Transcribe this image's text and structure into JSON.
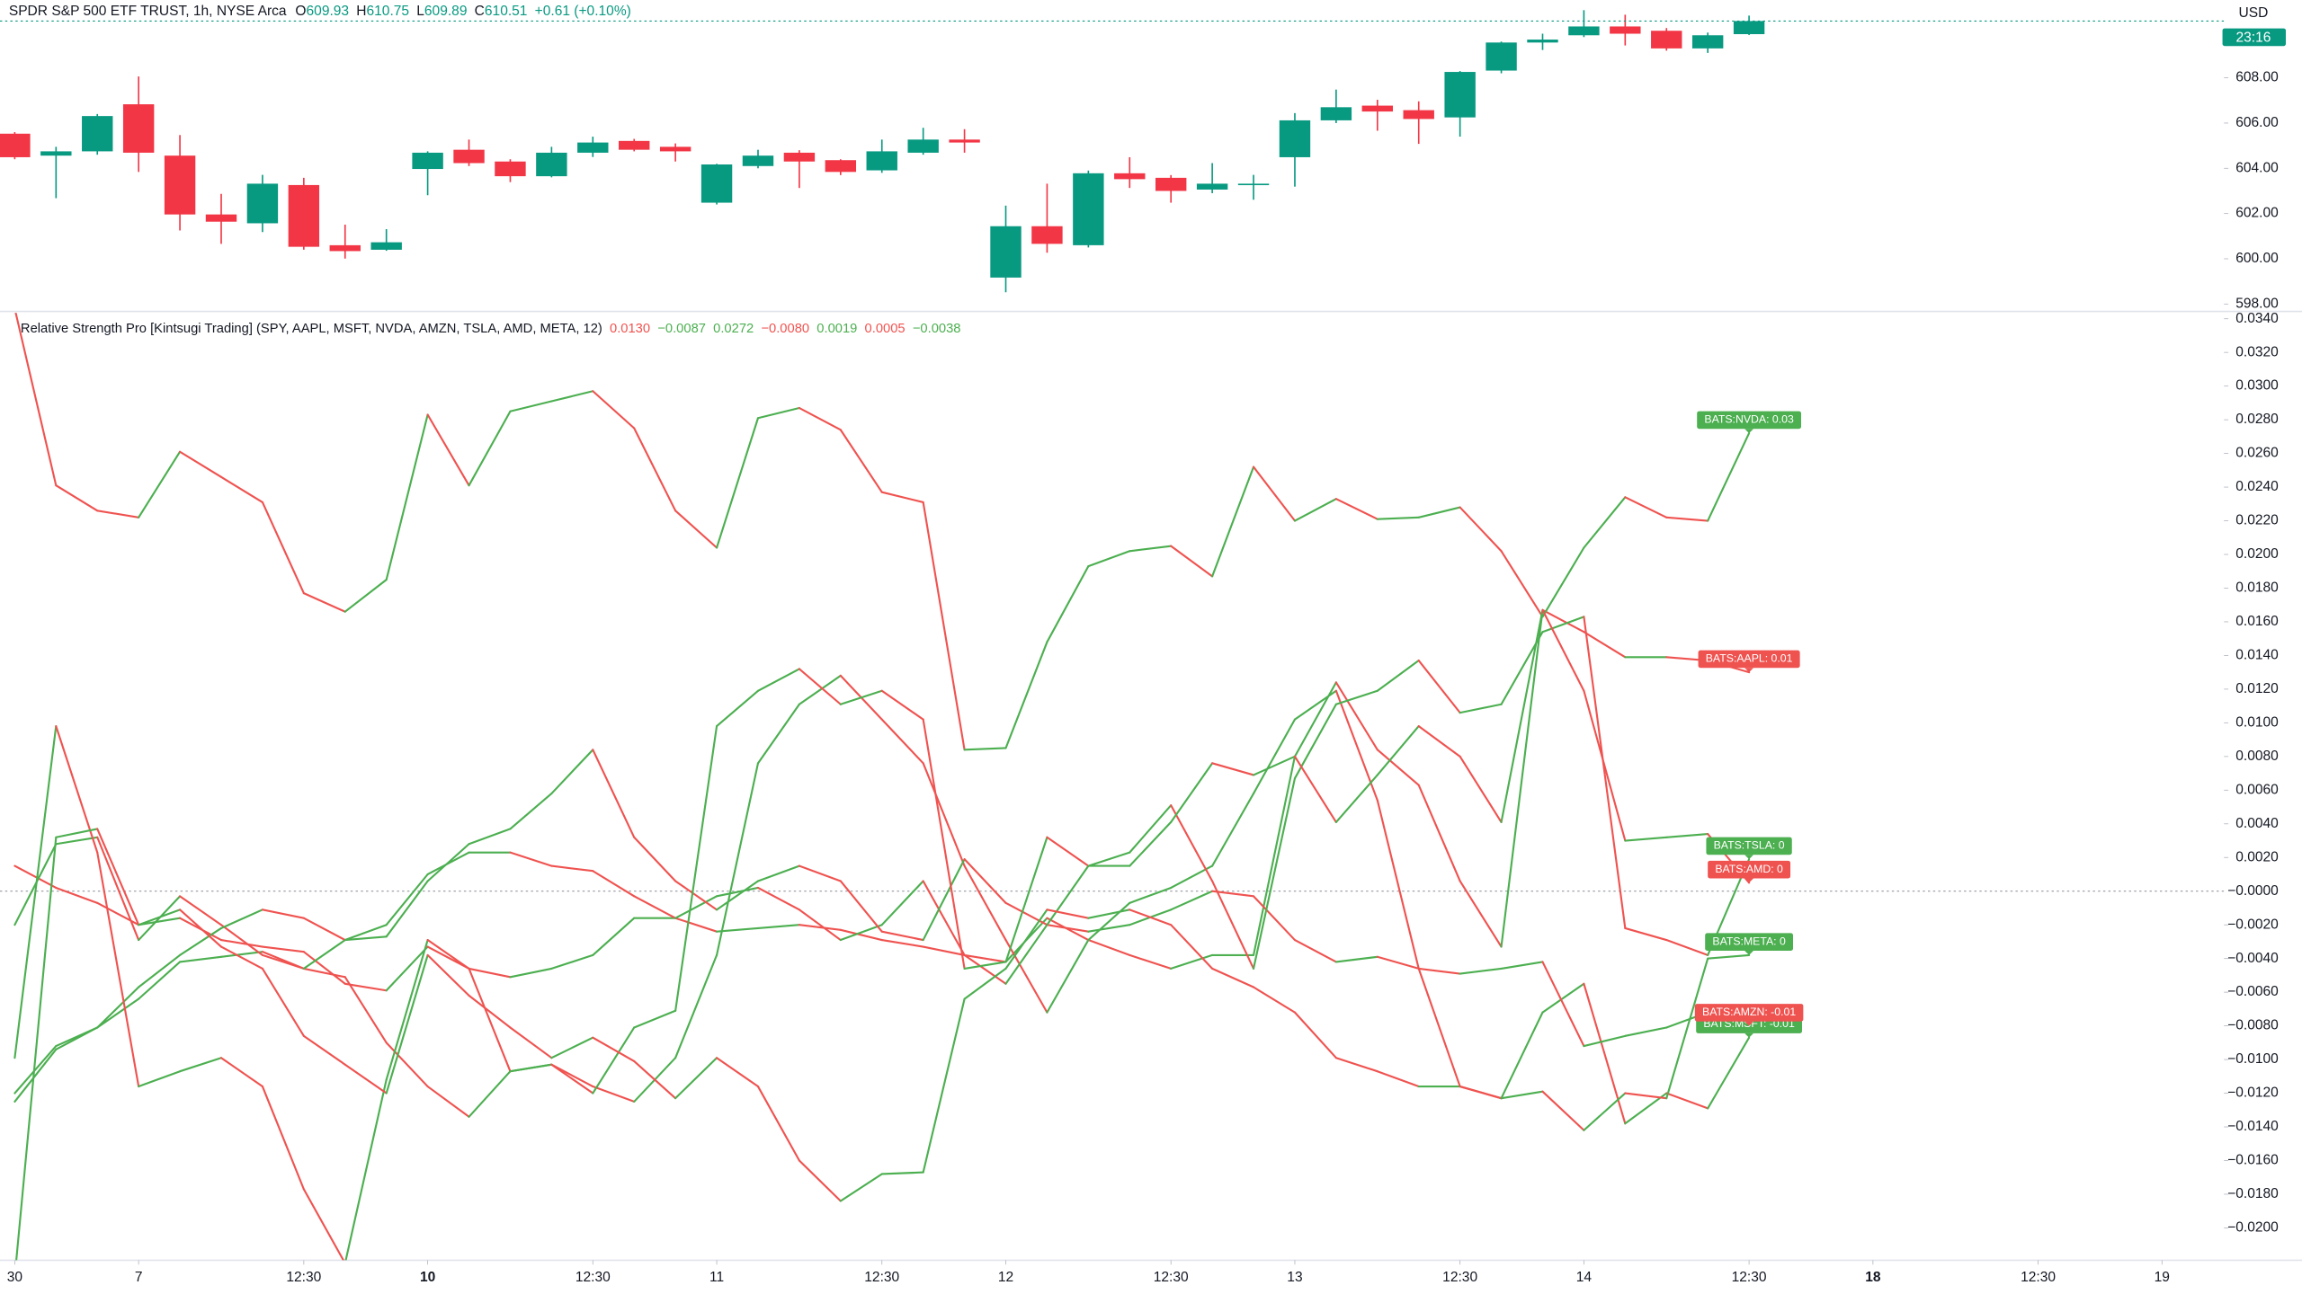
{
  "chart_data": [
    {
      "type": "candlestick",
      "title": "SPDR S&P 500 ETF TRUST, 1h, NYSE Arca",
      "ohlc_labels": [
        {
          "key": "O",
          "text": "609.93"
        },
        {
          "key": "H",
          "text": "610.75"
        },
        {
          "key": "L",
          "text": "609.89"
        },
        {
          "key": "C",
          "text": "610.51"
        }
      ],
      "change": "+0.61 (+0.10%)",
      "currency": "USD",
      "countdown": "23:16",
      "up_color": "#089981",
      "down_color": "#f23645",
      "x": [
        0,
        1,
        2,
        3,
        4,
        5,
        6,
        7,
        8,
        9,
        10,
        11,
        12,
        13,
        14,
        15,
        16,
        17,
        18,
        19,
        20,
        21,
        22,
        23,
        24,
        25,
        26,
        27,
        28,
        29,
        30,
        31,
        32,
        33,
        34,
        35,
        36,
        37,
        38,
        39,
        40,
        41,
        42
      ],
      "open": [
        605.53,
        604.56,
        604.75,
        606.83,
        604.56,
        601.96,
        601.57,
        603.26,
        600.6,
        600.4,
        603.97,
        604.82,
        604.3,
        603.65,
        604.69,
        605.21,
        604.95,
        602.48,
        604.1,
        604.69,
        604.36,
        603.91,
        604.69,
        605.27,
        599.17,
        601.44,
        600.6,
        603.78,
        603.58,
        603.06,
        603.26,
        604.49,
        606.12,
        606.77,
        606.57,
        606.25,
        608.32,
        609.56,
        609.88,
        610.27,
        610.08,
        609.3,
        609.93
      ],
      "high": [
        605.6,
        604.95,
        606.4,
        608.06,
        605.47,
        602.87,
        603.71,
        603.58,
        601.51,
        601.31,
        604.75,
        605.27,
        604.4,
        604.95,
        605.4,
        605.3,
        605.1,
        604.2,
        604.82,
        604.8,
        604.4,
        605.27,
        605.79,
        605.73,
        602.35,
        603.32,
        603.9,
        604.49,
        603.7,
        604.23,
        603.71,
        606.44,
        607.48,
        607.03,
        606.96,
        608.3,
        609.6,
        609.95,
        610.99,
        610.79,
        610.2,
        610.0,
        610.75
      ],
      "low": [
        604.4,
        602.68,
        604.6,
        603.84,
        601.25,
        600.66,
        601.18,
        600.4,
        600.01,
        600.35,
        602.81,
        604.1,
        603.39,
        603.6,
        604.5,
        604.75,
        604.3,
        602.4,
        604.0,
        603.13,
        603.7,
        603.8,
        604.6,
        604.69,
        598.52,
        600.27,
        600.5,
        603.13,
        602.48,
        602.9,
        602.61,
        603.19,
        606.0,
        605.66,
        605.08,
        605.4,
        608.2,
        609.23,
        609.8,
        609.43,
        609.2,
        609.1,
        609.89
      ],
      "close": [
        604.49,
        604.75,
        606.31,
        604.69,
        601.96,
        601.64,
        603.32,
        600.53,
        600.34,
        600.73,
        604.69,
        604.23,
        603.65,
        604.69,
        605.14,
        604.82,
        604.75,
        604.17,
        604.56,
        604.3,
        603.84,
        604.75,
        605.27,
        605.14,
        601.44,
        600.66,
        603.78,
        603.52,
        603.0,
        603.32,
        603.32,
        606.12,
        606.7,
        606.51,
        606.18,
        608.26,
        609.56,
        609.69,
        610.27,
        609.95,
        609.3,
        609.88,
        610.51
      ],
      "xlim": [
        -0.357,
        53.5
      ],
      "ylim": [
        597.74,
        611.44
      ],
      "yticks": [
        {
          "value": 598,
          "label": "598.00"
        },
        {
          "value": 600,
          "label": "600.00"
        },
        {
          "value": 602,
          "label": "602.00"
        },
        {
          "value": 604,
          "label": "604.00"
        },
        {
          "value": 606,
          "label": "606.00"
        },
        {
          "value": 608,
          "label": "608.00"
        }
      ],
      "last_price_line": true
    },
    {
      "type": "line",
      "title": "Relative Strength Pro [Kintsugi Trading] (SPY, AAPL, MSFT, NVDA, AMZN, TSLA, AMD, META, 12)",
      "up_color": "#4caf50",
      "down_color": "#ef5350",
      "x": [
        0,
        1,
        2,
        3,
        4,
        5,
        6,
        7,
        8,
        9,
        10,
        11,
        12,
        13,
        14,
        15,
        16,
        17,
        18,
        19,
        20,
        21,
        22,
        23,
        24,
        25,
        26,
        27,
        28,
        29,
        30,
        31,
        32,
        33,
        34,
        35,
        36,
        37,
        38,
        39,
        40,
        41,
        42
      ],
      "series": [
        {
          "tag": "BATS:AAPL: 0.01",
          "legend_value": "0.0130",
          "values": [
            0.0015,
            0.0002,
            -0.0007,
            -0.002,
            -0.0016,
            -0.0029,
            -0.0033,
            -0.0036,
            -0.0055,
            -0.0059,
            -0.0033,
            -0.0046,
            -0.0051,
            -0.0046,
            -0.0038,
            -0.0016,
            -0.0016,
            -0.0024,
            -0.0022,
            -0.002,
            -0.0023,
            -0.0029,
            -0.0033,
            -0.0038,
            -0.0042,
            -0.0016,
            -0.0029,
            -0.0038,
            -0.0046,
            -0.0038,
            -0.0038,
            0.008,
            0.0124,
            0.0084,
            0.0063,
            0.0006,
            -0.0033,
            0.0167,
            0.0154,
            0.0139,
            0.0139,
            0.0137,
            0.013
          ]
        },
        {
          "tag": "BATS:MSFT: -0.01",
          "legend_value": "−0.0087",
          "values": [
            -0.0125,
            -0.0094,
            -0.0081,
            -0.0064,
            -0.0042,
            -0.0039,
            -0.0036,
            -0.0046,
            -0.0051,
            -0.009,
            -0.0116,
            -0.0134,
            -0.0107,
            -0.0103,
            -0.0116,
            -0.0125,
            -0.0099,
            -0.0038,
            0.0076,
            0.0111,
            0.0128,
            0.0102,
            0.0076,
            0.0015,
            -0.0029,
            -0.0072,
            -0.0029,
            -0.0007,
            0.0002,
            0.0015,
            0.0058,
            0.0102,
            0.0119,
            0.0054,
            -0.0046,
            -0.0116,
            -0.0123,
            -0.0072,
            -0.0055,
            -0.0138,
            -0.012,
            -0.0129,
            -0.0087
          ]
        },
        {
          "tag": "BATS:NVDA: 0.03",
          "legend_value": "0.0272",
          "values": [
            0.0346,
            0.0241,
            0.0226,
            0.0222,
            0.0261,
            0.0246,
            0.0231,
            0.0177,
            0.0166,
            0.0185,
            0.0283,
            0.0241,
            0.0285,
            0.0291,
            0.0297,
            0.0275,
            0.0226,
            0.0204,
            0.0281,
            0.0287,
            0.0274,
            0.0237,
            0.0231,
            0.0084,
            0.0085,
            0.0148,
            0.0193,
            0.0202,
            0.0205,
            0.0187,
            0.0252,
            0.022,
            0.0233,
            0.0221,
            0.0222,
            0.0228,
            0.0202,
            0.0163,
            0.0204,
            0.0234,
            0.0222,
            0.022,
            0.0272
          ]
        },
        {
          "tag": "BATS:AMZN: -0.01",
          "legend_value": "−0.0080",
          "values": [
            -0.002,
            0.0028,
            0.0032,
            -0.0029,
            -0.0003,
            -0.002,
            -0.0038,
            -0.0046,
            -0.0029,
            -0.002,
            0.001,
            0.0023,
            0.0023,
            0.0015,
            0.0012,
            -0.0003,
            -0.0016,
            -0.0003,
            0.0002,
            -0.0011,
            -0.0029,
            -0.002,
            0.0006,
            -0.0038,
            -0.0055,
            -0.002,
            -0.0024,
            -0.002,
            -0.0011,
            0.0,
            -0.0003,
            -0.0029,
            -0.0042,
            -0.0039,
            -0.0046,
            -0.0049,
            -0.0046,
            -0.0042,
            -0.0092,
            -0.0086,
            -0.0081,
            -0.0072,
            -0.008
          ]
        },
        {
          "tag": "BATS:TSLA: 0",
          "legend_value": "0.0019",
          "values": [
            -0.012,
            -0.0092,
            -0.0081,
            -0.0057,
            -0.0038,
            -0.0022,
            -0.0011,
            -0.0016,
            -0.0029,
            -0.0027,
            0.0006,
            0.0028,
            0.0037,
            0.0058,
            0.0084,
            0.0032,
            0.0006,
            -0.0011,
            0.0006,
            0.0015,
            0.0006,
            -0.0024,
            -0.0029,
            0.0019,
            -0.0007,
            -0.002,
            0.0015,
            0.0023,
            0.0051,
            0.0006,
            -0.0046,
            0.0067,
            0.0111,
            0.0119,
            0.0137,
            0.0106,
            0.0111,
            0.0154,
            0.0163,
            -0.0022,
            -0.0029,
            -0.0038,
            0.0019
          ]
        },
        {
          "tag": "BATS:AMD: 0",
          "legend_value": "0.0005",
          "values": [
            -0.0099,
            0.0098,
            0.0023,
            -0.0116,
            -0.0107,
            -0.0099,
            -0.0116,
            -0.0177,
            -0.0221,
            -0.0112,
            -0.0029,
            -0.0046,
            -0.0107,
            -0.0103,
            -0.012,
            -0.0081,
            -0.0071,
            0.0098,
            0.0119,
            0.0132,
            0.0111,
            0.0119,
            0.0102,
            -0.0046,
            -0.0042,
            0.0032,
            0.0015,
            0.0015,
            0.0041,
            0.0076,
            0.0069,
            0.008,
            0.0041,
            0.0069,
            0.0098,
            0.008,
            0.0041,
            0.0167,
            0.0119,
            0.003,
            0.0032,
            0.0034,
            0.0005
          ]
        },
        {
          "tag": "BATS:META: 0",
          "legend_value": "−0.0038",
          "values": [
            -0.0229,
            0.0032,
            0.0037,
            -0.002,
            -0.0011,
            -0.0033,
            -0.0046,
            -0.0086,
            -0.0103,
            -0.012,
            -0.0038,
            -0.0062,
            -0.0081,
            -0.0099,
            -0.0087,
            -0.0101,
            -0.0123,
            -0.0099,
            -0.0116,
            -0.016,
            -0.0184,
            -0.0168,
            -0.0167,
            -0.0064,
            -0.0046,
            -0.0011,
            -0.0016,
            -0.0011,
            -0.002,
            -0.0046,
            -0.0057,
            -0.0072,
            -0.0099,
            -0.0107,
            -0.0116,
            -0.0116,
            -0.0123,
            -0.0119,
            -0.0142,
            -0.012,
            -0.0123,
            -0.004,
            -0.0038
          ]
        }
      ],
      "xlim": [
        -0.357,
        53.5
      ],
      "xticks": [
        {
          "value": 0,
          "label": "30"
        },
        {
          "value": 3,
          "label": "7"
        },
        {
          "value": 7,
          "label": "12:30"
        },
        {
          "value": 10,
          "label": "10",
          "bold": true
        },
        {
          "value": 14,
          "label": "12:30"
        },
        {
          "value": 17,
          "label": "11"
        },
        {
          "value": 21,
          "label": "12:30"
        },
        {
          "value": 24,
          "label": "12"
        },
        {
          "value": 28,
          "label": "12:30"
        },
        {
          "value": 31,
          "label": "13"
        },
        {
          "value": 35,
          "label": "12:30"
        },
        {
          "value": 38,
          "label": "14"
        },
        {
          "value": 42,
          "label": "12:30"
        },
        {
          "value": 45,
          "label": "18",
          "bold": true
        },
        {
          "value": 49,
          "label": "12:30"
        },
        {
          "value": 52,
          "label": "19"
        }
      ],
      "ylim": [
        -0.02192,
        0.03435
      ],
      "yticks": [
        {
          "value": 0.034,
          "label": "0.0340"
        },
        {
          "value": 0.032,
          "label": "0.0320"
        },
        {
          "value": 0.03,
          "label": "0.0300"
        },
        {
          "value": 0.028,
          "label": "0.0280"
        },
        {
          "value": 0.026,
          "label": "0.0260"
        },
        {
          "value": 0.024,
          "label": "0.0240"
        },
        {
          "value": 0.022,
          "label": "0.0220"
        },
        {
          "value": 0.02,
          "label": "0.0200"
        },
        {
          "value": 0.018,
          "label": "0.0180"
        },
        {
          "value": 0.016,
          "label": "0.0160"
        },
        {
          "value": 0.014,
          "label": "0.0140"
        },
        {
          "value": 0.012,
          "label": "0.0120"
        },
        {
          "value": 0.01,
          "label": "0.0100"
        },
        {
          "value": 0.008,
          "label": "0.0080"
        },
        {
          "value": 0.006,
          "label": "0.0060"
        },
        {
          "value": 0.004,
          "label": "0.0040"
        },
        {
          "value": 0.002,
          "label": "0.0020"
        },
        {
          "value": 0,
          "label": "−0.0000"
        },
        {
          "value": -0.002,
          "label": "−0.0020"
        },
        {
          "value": -0.004,
          "label": "−0.0040"
        },
        {
          "value": -0.006,
          "label": "−0.0060"
        },
        {
          "value": -0.008,
          "label": "−0.0080"
        },
        {
          "value": -0.01,
          "label": "−0.0100"
        },
        {
          "value": -0.012,
          "label": "−0.0120"
        },
        {
          "value": -0.014,
          "label": "−0.0140"
        },
        {
          "value": -0.016,
          "label": "−0.0160"
        },
        {
          "value": -0.018,
          "label": "−0.0180"
        },
        {
          "value": -0.02,
          "label": "−0.0200"
        }
      ],
      "zero_line": true
    }
  ]
}
